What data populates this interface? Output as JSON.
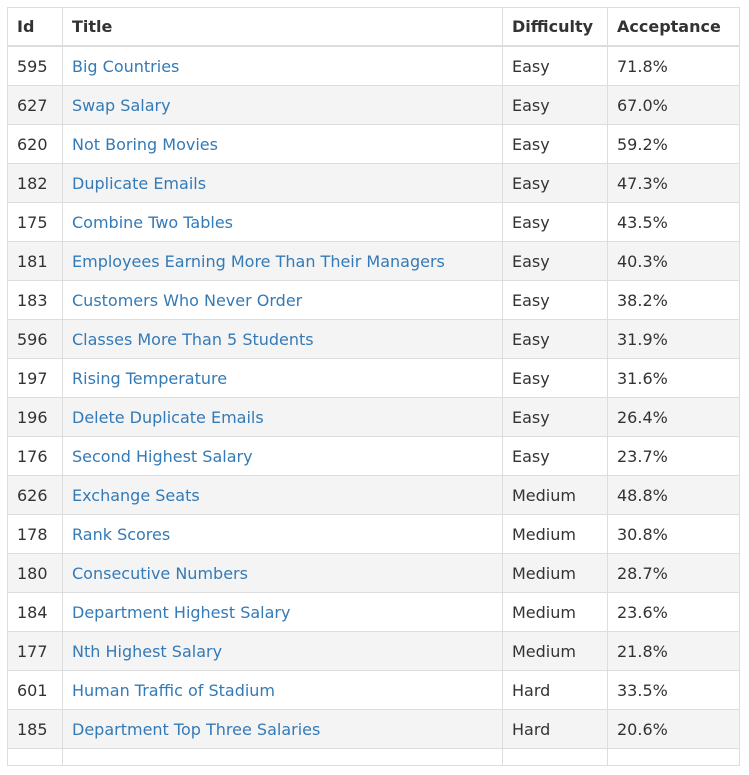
{
  "table": {
    "headers": {
      "id": "Id",
      "title": "Title",
      "difficulty": "Difficulty",
      "acceptance": "Acceptance"
    },
    "rows": [
      {
        "id": "595",
        "title": "Big Countries",
        "difficulty": "Easy",
        "acceptance": "71.8%"
      },
      {
        "id": "627",
        "title": "Swap Salary",
        "difficulty": "Easy",
        "acceptance": "67.0%"
      },
      {
        "id": "620",
        "title": "Not Boring Movies",
        "difficulty": "Easy",
        "acceptance": "59.2%"
      },
      {
        "id": "182",
        "title": "Duplicate Emails",
        "difficulty": "Easy",
        "acceptance": "47.3%"
      },
      {
        "id": "175",
        "title": "Combine Two Tables",
        "difficulty": "Easy",
        "acceptance": "43.5%"
      },
      {
        "id": "181",
        "title": "Employees Earning More Than Their Managers",
        "difficulty": "Easy",
        "acceptance": "40.3%"
      },
      {
        "id": "183",
        "title": "Customers Who Never Order",
        "difficulty": "Easy",
        "acceptance": "38.2%"
      },
      {
        "id": "596",
        "title": "Classes More Than 5 Students",
        "difficulty": "Easy",
        "acceptance": "31.9%"
      },
      {
        "id": "197",
        "title": "Rising Temperature",
        "difficulty": "Easy",
        "acceptance": "31.6%"
      },
      {
        "id": "196",
        "title": "Delete Duplicate Emails",
        "difficulty": "Easy",
        "acceptance": "26.4%"
      },
      {
        "id": "176",
        "title": "Second Highest Salary",
        "difficulty": "Easy",
        "acceptance": "23.7%"
      },
      {
        "id": "626",
        "title": "Exchange Seats",
        "difficulty": "Medium",
        "acceptance": "48.8%"
      },
      {
        "id": "178",
        "title": "Rank Scores",
        "difficulty": "Medium",
        "acceptance": "30.8%"
      },
      {
        "id": "180",
        "title": "Consecutive Numbers",
        "difficulty": "Medium",
        "acceptance": "28.7%"
      },
      {
        "id": "184",
        "title": "Department Highest Salary",
        "difficulty": "Medium",
        "acceptance": "23.6%"
      },
      {
        "id": "177",
        "title": "Nth Highest Salary",
        "difficulty": "Medium",
        "acceptance": "21.8%"
      },
      {
        "id": "601",
        "title": "Human Traffic of Stadium",
        "difficulty": "Hard",
        "acceptance": "33.5%"
      },
      {
        "id": "185",
        "title": "Department Top Three Salaries",
        "difficulty": "Hard",
        "acceptance": "20.6%"
      }
    ]
  },
  "colors": {
    "link": "#337ab7",
    "border": "#dddddd",
    "stripe": "#f4f4f4",
    "text": "#333333"
  }
}
